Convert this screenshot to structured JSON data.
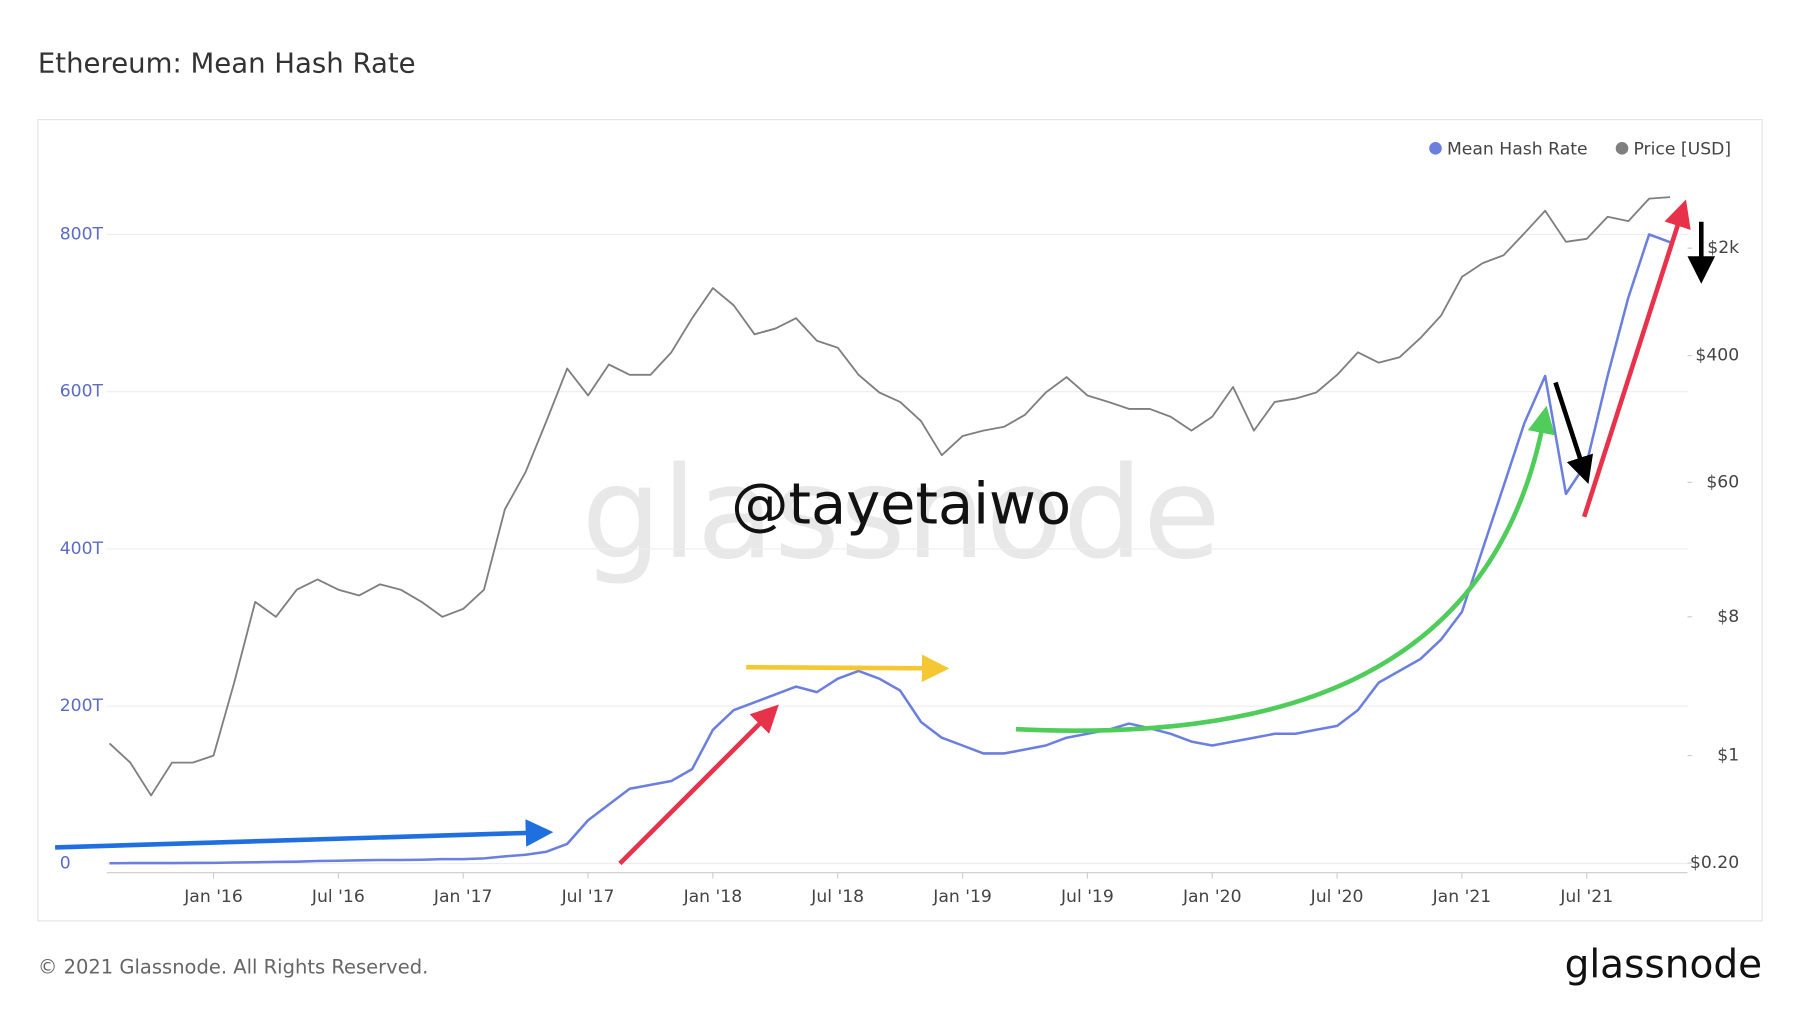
{
  "chart_data": {
    "type": "line",
    "title": "Ethereum: Mean Hash Rate",
    "watermark": "glassnode",
    "annotation": "@tayetaiwo",
    "footer": "© 2021 Glassnode. All Rights Reserved.",
    "logo": "glassnode",
    "x": [
      "2015-08",
      "2015-09",
      "2015-10",
      "2015-11",
      "2015-12",
      "2016-01",
      "2016-02",
      "2016-03",
      "2016-04",
      "2016-05",
      "2016-06",
      "2016-07",
      "2016-08",
      "2016-09",
      "2016-10",
      "2016-11",
      "2016-12",
      "2017-01",
      "2017-02",
      "2017-03",
      "2017-04",
      "2017-05",
      "2017-06",
      "2017-07",
      "2017-08",
      "2017-09",
      "2017-10",
      "2017-11",
      "2017-12",
      "2018-01",
      "2018-02",
      "2018-03",
      "2018-04",
      "2018-05",
      "2018-06",
      "2018-07",
      "2018-08",
      "2018-09",
      "2018-10",
      "2018-11",
      "2018-12",
      "2019-01",
      "2019-02",
      "2019-03",
      "2019-04",
      "2019-05",
      "2019-06",
      "2019-07",
      "2019-08",
      "2019-09",
      "2019-10",
      "2019-11",
      "2019-12",
      "2020-01",
      "2020-02",
      "2020-03",
      "2020-04",
      "2020-05",
      "2020-06",
      "2020-07",
      "2020-08",
      "2020-09",
      "2020-10",
      "2020-11",
      "2020-12",
      "2021-01",
      "2021-02",
      "2021-03",
      "2021-04",
      "2021-05",
      "2021-06",
      "2021-07",
      "2021-08",
      "2021-09",
      "2021-10",
      "2021-11"
    ],
    "series": [
      {
        "name": "Mean Hash Rate",
        "color": "#6a7fe0",
        "axis": "y",
        "values": [
          0.3,
          0.5,
          0.5,
          0.6,
          0.7,
          0.9,
          1.3,
          1.6,
          2,
          2.3,
          3.2,
          3.5,
          4,
          4.5,
          4.5,
          4.8,
          5.5,
          5.5,
          6.5,
          9,
          11,
          15,
          25,
          55,
          75,
          95,
          100,
          105,
          120,
          170,
          195,
          205,
          215,
          225,
          218,
          235,
          245,
          235,
          220,
          180,
          160,
          150,
          140,
          140,
          145,
          150,
          160,
          165,
          170,
          178,
          172,
          165,
          155,
          150,
          155,
          160,
          165,
          165,
          170,
          175,
          195,
          230,
          245,
          260,
          285,
          320,
          400,
          480,
          560,
          620,
          470,
          510,
          620,
          720,
          800,
          790
        ]
      },
      {
        "name": "Price [USD]",
        "color": "#7f7f7f",
        "axis": "y2",
        "values": [
          1.2,
          0.9,
          0.55,
          0.9,
          0.9,
          1.0,
          3,
          10,
          8,
          12,
          14,
          12,
          11,
          13,
          12,
          10,
          8,
          9,
          12,
          40,
          70,
          150,
          330,
          220,
          350,
          300,
          300,
          420,
          700,
          1100,
          850,
          550,
          600,
          700,
          500,
          450,
          300,
          230,
          200,
          150,
          90,
          120,
          130,
          138,
          165,
          230,
          290,
          220,
          200,
          180,
          180,
          160,
          130,
          160,
          250,
          130,
          200,
          210,
          230,
          300,
          420,
          360,
          390,
          520,
          730,
          1300,
          1600,
          1800,
          2500,
          3500,
          2200,
          2300,
          3200,
          3000,
          4200,
          4300
        ]
      }
    ],
    "xticks": [
      {
        "value": "2016-01",
        "label": "Jan '16"
      },
      {
        "value": "2016-07",
        "label": "Jul '16"
      },
      {
        "value": "2017-01",
        "label": "Jan '17"
      },
      {
        "value": "2017-07",
        "label": "Jul '17"
      },
      {
        "value": "2018-01",
        "label": "Jan '18"
      },
      {
        "value": "2018-07",
        "label": "Jul '18"
      },
      {
        "value": "2019-01",
        "label": "Jan '19"
      },
      {
        "value": "2019-07",
        "label": "Jul '19"
      },
      {
        "value": "2020-01",
        "label": "Jan '20"
      },
      {
        "value": "2020-07",
        "label": "Jul '20"
      },
      {
        "value": "2021-01",
        "label": "Jan '21"
      },
      {
        "value": "2021-07",
        "label": "Jul '21"
      }
    ],
    "ylim": [
      -11.7,
      889
    ],
    "yticks": [
      0,
      {
        "value": 200,
        "label": "200T"
      },
      {
        "value": 400,
        "label": "400T"
      },
      {
        "value": 600,
        "label": "600T"
      },
      {
        "value": 800,
        "label": "800T"
      }
    ],
    "y2lim": [
      0.173,
      7015
    ],
    "y2scale": "log",
    "y2ticks": [
      {
        "value": 0.2,
        "label": "$0.20"
      },
      {
        "value": 1,
        "label": "$1"
      },
      {
        "value": 8,
        "label": "$8"
      },
      {
        "value": 60,
        "label": "$60"
      },
      {
        "value": 400,
        "label": "$400"
      },
      {
        "value": 2000,
        "label": "$2k"
      }
    ],
    "grid": true,
    "legend": "top-right"
  }
}
